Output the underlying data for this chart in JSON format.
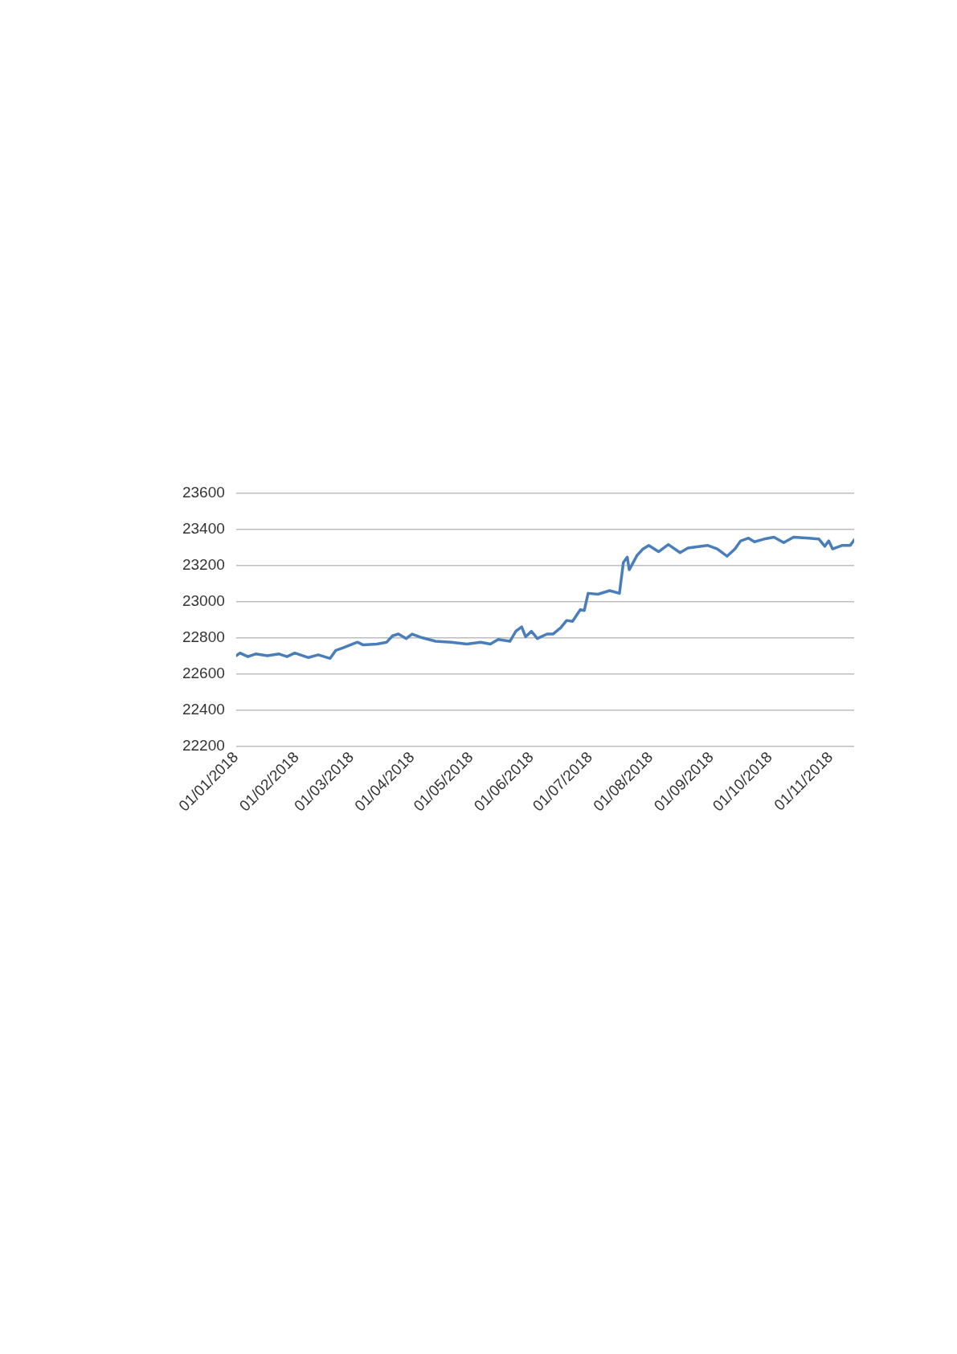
{
  "chart_data": {
    "type": "line",
    "x": [
      "2018-01-01",
      "2018-01-03",
      "2018-01-07",
      "2018-01-11",
      "2018-01-17",
      "2018-01-23",
      "2018-01-27",
      "2018-01-31",
      "2018-02-07",
      "2018-02-12",
      "2018-02-18",
      "2018-02-21",
      "2018-02-25",
      "2018-03-04",
      "2018-03-07",
      "2018-03-14",
      "2018-03-19",
      "2018-03-22",
      "2018-03-25",
      "2018-03-29",
      "2018-04-01",
      "2018-04-06",
      "2018-04-13",
      "2018-04-21",
      "2018-04-29",
      "2018-05-06",
      "2018-05-11",
      "2018-05-15",
      "2018-05-21",
      "2018-05-24",
      "2018-05-27",
      "2018-05-29",
      "2018-06-01",
      "2018-06-04",
      "2018-06-09",
      "2018-06-12",
      "2018-06-16",
      "2018-06-19",
      "2018-06-22",
      "2018-06-26",
      "2018-06-28",
      "2018-06-30",
      "2018-07-05",
      "2018-07-11",
      "2018-07-16",
      "2018-07-18",
      "2018-07-20",
      "2018-07-21",
      "2018-07-25",
      "2018-07-28",
      "2018-07-31",
      "2018-08-05",
      "2018-08-10",
      "2018-08-16",
      "2018-08-20",
      "2018-08-30",
      "2018-09-04",
      "2018-09-09",
      "2018-09-13",
      "2018-09-16",
      "2018-09-20",
      "2018-09-23",
      "2018-09-28",
      "2018-10-03",
      "2018-10-08",
      "2018-10-13",
      "2018-10-21",
      "2018-10-26",
      "2018-10-29",
      "2018-10-31",
      "2018-11-02",
      "2018-11-07",
      "2018-11-11",
      "2018-11-13"
    ],
    "series": [
      {
        "color": "#4a7ebb",
        "values": [
          22700,
          22715,
          22695,
          22710,
          22700,
          22710,
          22695,
          22715,
          22690,
          22705,
          22685,
          22730,
          22745,
          22775,
          22760,
          22765,
          22775,
          22810,
          22820,
          22795,
          22820,
          22800,
          22780,
          22775,
          22765,
          22775,
          22765,
          22790,
          22780,
          22835,
          22860,
          22805,
          22835,
          22795,
          22820,
          22820,
          22855,
          22895,
          22890,
          22955,
          22950,
          23045,
          23040,
          23060,
          23045,
          23215,
          23245,
          23175,
          23255,
          23290,
          23310,
          23275,
          23315,
          23270,
          23295,
          23310,
          23290,
          23250,
          23290,
          23335,
          23350,
          23330,
          23345,
          23355,
          23325,
          23355,
          23350,
          23345,
          23305,
          23335,
          23290,
          23310,
          23310,
          23340
        ]
      }
    ],
    "xlim": [
      "2018-01-01",
      "2018-11-13"
    ],
    "xticks": [
      {
        "value": "2018-01-01",
        "label": "01/01/2018"
      },
      {
        "value": "2018-02-01",
        "label": "01/02/2018"
      },
      {
        "value": "2018-03-01",
        "label": "01/03/2018"
      },
      {
        "value": "2018-04-01",
        "label": "01/04/2018"
      },
      {
        "value": "2018-05-01",
        "label": "01/05/2018"
      },
      {
        "value": "2018-06-01",
        "label": "01/06/2018"
      },
      {
        "value": "2018-07-01",
        "label": "01/07/2018"
      },
      {
        "value": "2018-08-01",
        "label": "01/08/2018"
      },
      {
        "value": "2018-09-01",
        "label": "01/09/2018"
      },
      {
        "value": "2018-10-01",
        "label": "01/10/2018"
      },
      {
        "value": "2018-11-01",
        "label": "01/11/2018"
      }
    ],
    "ylim": [
      22200,
      23600
    ],
    "yticks": [
      22200,
      22400,
      22600,
      22800,
      23000,
      23200,
      23400,
      23600
    ],
    "grid": "y",
    "marker": "none",
    "line_style": "solid"
  }
}
